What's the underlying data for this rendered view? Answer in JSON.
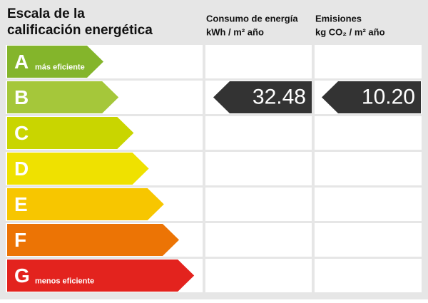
{
  "header": {
    "title": [
      "Escala de la",
      "calificación energética"
    ],
    "columns": [
      [
        "Consumo de energía",
        "kWh / m² año"
      ],
      [
        "Emisiones",
        "kg CO₂ / m² año"
      ]
    ]
  },
  "ratings": [
    {
      "letter": "A",
      "note": "más eficiente",
      "color": "#84b52b"
    },
    {
      "letter": "B",
      "color": "#a5c73a",
      "consumo": "32.48",
      "emisiones": "10.20"
    },
    {
      "letter": "C",
      "color": "#c9d500"
    },
    {
      "letter": "D",
      "color": "#efe100"
    },
    {
      "letter": "E",
      "color": "#f7c600"
    },
    {
      "letter": "F",
      "color": "#ec7405"
    },
    {
      "letter": "G",
      "note": "menos eficiente",
      "color": "#e3231e"
    }
  ]
}
